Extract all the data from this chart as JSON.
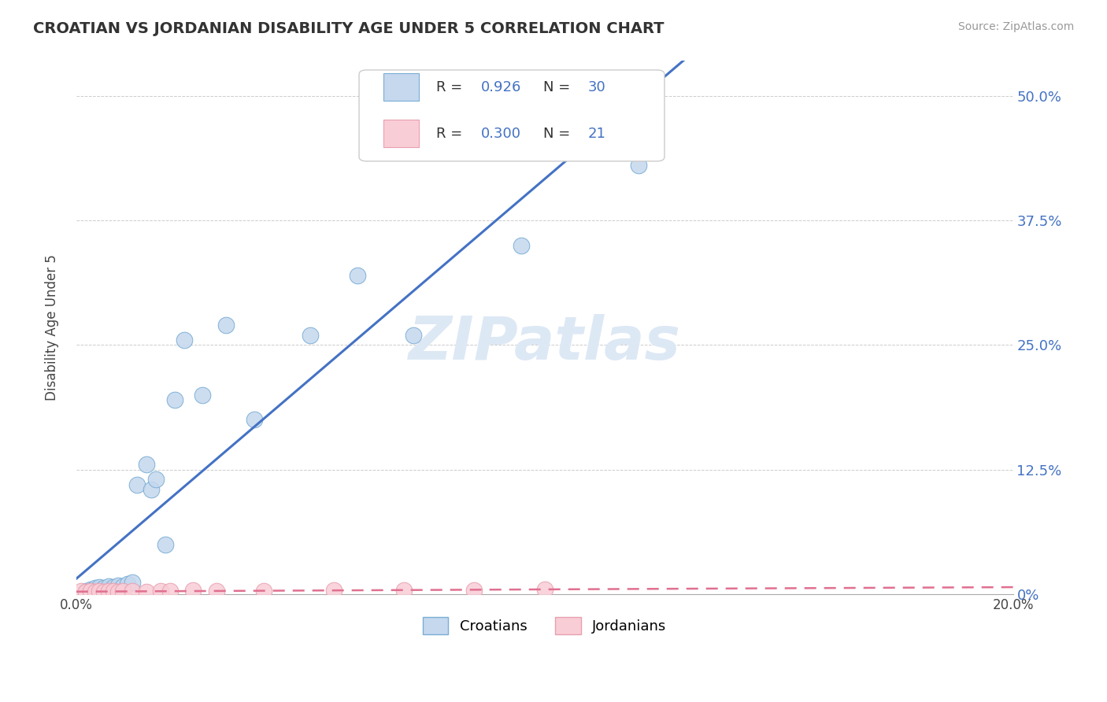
{
  "title": "CROATIAN VS JORDANIAN DISABILITY AGE UNDER 5 CORRELATION CHART",
  "source": "Source: ZipAtlas.com",
  "ylabel": "Disability Age Under 5",
  "xlim": [
    0.0,
    0.2
  ],
  "ylim": [
    0.0,
    0.535
  ],
  "xticks": [
    0.0,
    0.04,
    0.08,
    0.12,
    0.16,
    0.2
  ],
  "xtick_labels": [
    "0.0%",
    "",
    "",
    "",
    "",
    "20.0%"
  ],
  "ytick_labels_right": [
    "0%",
    "12.5%",
    "25.0%",
    "37.5%",
    "50.0%"
  ],
  "yticks_right": [
    0.0,
    0.125,
    0.25,
    0.375,
    0.5
  ],
  "croatian_R": 0.926,
  "croatian_N": 30,
  "jordanian_R": 0.3,
  "jordanian_N": 21,
  "croatian_color": "#c5d8ee",
  "croatian_edge_color": "#7aadd4",
  "croatian_line_color": "#4472c4",
  "jordanian_color": "#f9cdd6",
  "jordanian_edge_color": "#e8a0b0",
  "jordanian_line_color": "#e07090",
  "background_color": "#ffffff",
  "grid_color": "#cccccc",
  "watermark": "ZIPatlas",
  "croatian_x": [
    0.002,
    0.003,
    0.003,
    0.004,
    0.004,
    0.005,
    0.005,
    0.006,
    0.007,
    0.007,
    0.008,
    0.009,
    0.01,
    0.011,
    0.012,
    0.013,
    0.015,
    0.016,
    0.017,
    0.019,
    0.021,
    0.023,
    0.027,
    0.032,
    0.038,
    0.05,
    0.06,
    0.072,
    0.095,
    0.12
  ],
  "croatian_y": [
    0.003,
    0.004,
    0.005,
    0.004,
    0.006,
    0.005,
    0.007,
    0.006,
    0.005,
    0.008,
    0.007,
    0.009,
    0.008,
    0.01,
    0.012,
    0.11,
    0.13,
    0.105,
    0.115,
    0.05,
    0.195,
    0.255,
    0.2,
    0.27,
    0.175,
    0.26,
    0.32,
    0.26,
    0.35,
    0.43
  ],
  "jordanian_x": [
    0.001,
    0.002,
    0.003,
    0.004,
    0.005,
    0.006,
    0.007,
    0.008,
    0.009,
    0.01,
    0.012,
    0.015,
    0.018,
    0.02,
    0.025,
    0.03,
    0.04,
    0.055,
    0.07,
    0.085,
    0.1
  ],
  "jordanian_y": [
    0.003,
    0.002,
    0.003,
    0.002,
    0.003,
    0.002,
    0.003,
    0.003,
    0.002,
    0.003,
    0.003,
    0.002,
    0.003,
    0.003,
    0.004,
    0.003,
    0.003,
    0.004,
    0.004,
    0.004,
    0.005
  ]
}
